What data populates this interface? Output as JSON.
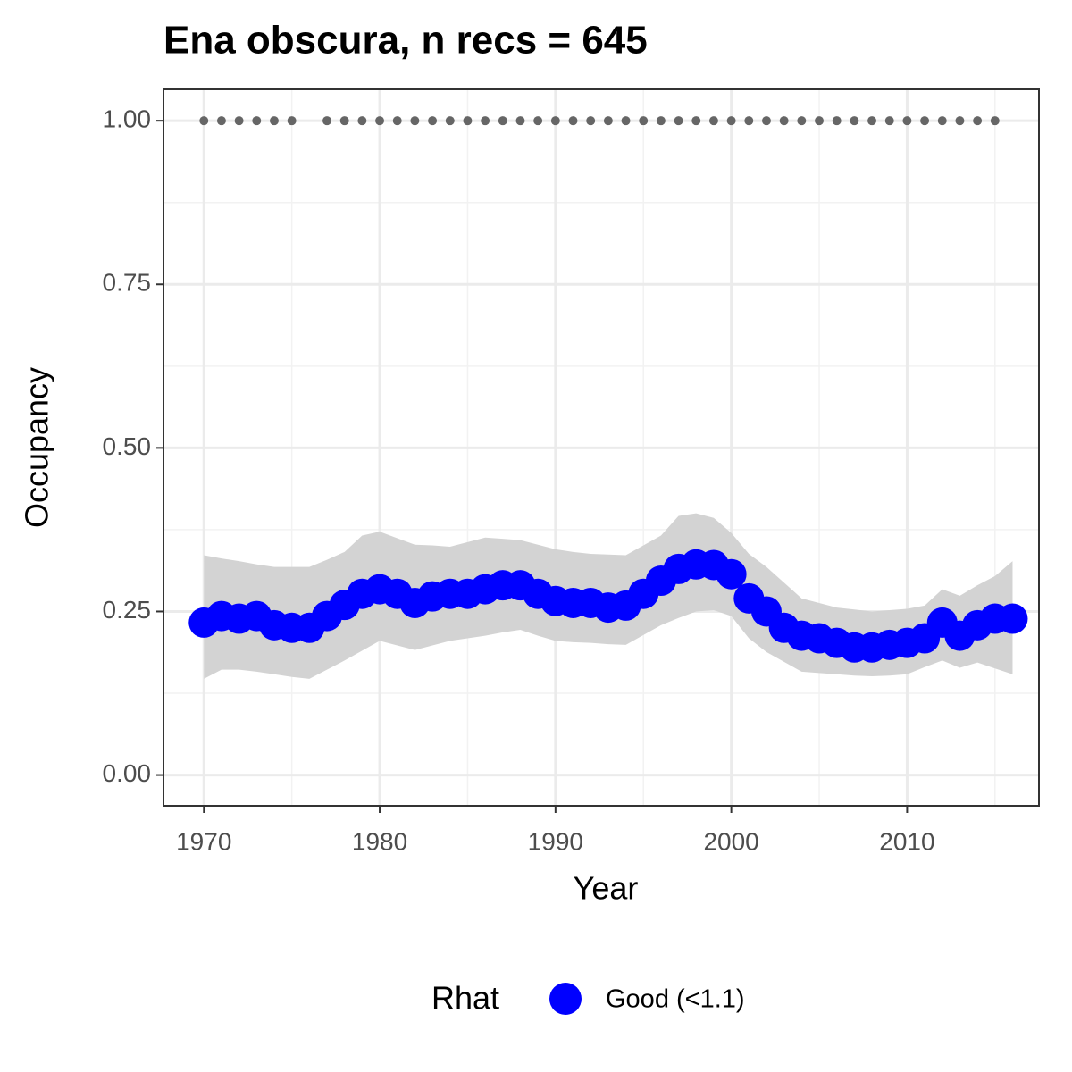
{
  "chart_data": {
    "type": "line",
    "title": "Ena obscura, n recs = 645",
    "x_label": "Year",
    "y_label": "Occupancy",
    "legend_title": "Rhat",
    "x": [
      1970,
      1971,
      1972,
      1973,
      1974,
      1975,
      1976,
      1977,
      1978,
      1979,
      1980,
      1981,
      1982,
      1983,
      1984,
      1985,
      1986,
      1987,
      1988,
      1989,
      1990,
      1991,
      1992,
      1993,
      1994,
      1995,
      1996,
      1997,
      1998,
      1999,
      2000,
      2001,
      2002,
      2003,
      2004,
      2005,
      2006,
      2007,
      2008,
      2009,
      2010,
      2011,
      2012,
      2013,
      2014,
      2015,
      2016
    ],
    "series": [
      {
        "name": "Good (<1.1)",
        "color": "#0000ff",
        "band_color": "#d3d3d3",
        "values": [
          0.233,
          0.243,
          0.239,
          0.243,
          0.229,
          0.225,
          0.225,
          0.243,
          0.26,
          0.277,
          0.284,
          0.277,
          0.263,
          0.273,
          0.277,
          0.277,
          0.284,
          0.29,
          0.29,
          0.277,
          0.266,
          0.263,
          0.263,
          0.256,
          0.259,
          0.277,
          0.297,
          0.315,
          0.322,
          0.321,
          0.307,
          0.27,
          0.25,
          0.225,
          0.213,
          0.209,
          0.202,
          0.195,
          0.195,
          0.199,
          0.202,
          0.209,
          0.233,
          0.213,
          0.229,
          0.239,
          0.239
        ],
        "upper": [
          0.336,
          0.331,
          0.327,
          0.322,
          0.318,
          0.318,
          0.318,
          0.329,
          0.341,
          0.366,
          0.372,
          0.362,
          0.352,
          0.351,
          0.349,
          0.356,
          0.363,
          0.361,
          0.359,
          0.352,
          0.345,
          0.341,
          0.338,
          0.337,
          0.336,
          0.351,
          0.366,
          0.396,
          0.4,
          0.393,
          0.37,
          0.338,
          0.318,
          0.294,
          0.27,
          0.263,
          0.256,
          0.253,
          0.25,
          0.252,
          0.254,
          0.259,
          0.284,
          0.274,
          0.29,
          0.304,
          0.327
        ],
        "lower": [
          0.147,
          0.161,
          0.161,
          0.158,
          0.154,
          0.15,
          0.147,
          0.161,
          0.175,
          0.19,
          0.205,
          0.198,
          0.191,
          0.198,
          0.205,
          0.209,
          0.213,
          0.218,
          0.222,
          0.213,
          0.205,
          0.203,
          0.202,
          0.2,
          0.199,
          0.214,
          0.229,
          0.24,
          0.25,
          0.252,
          0.243,
          0.209,
          0.188,
          0.173,
          0.158,
          0.156,
          0.154,
          0.152,
          0.151,
          0.152,
          0.154,
          0.165,
          0.175,
          0.164,
          0.172,
          0.163,
          0.154
        ]
      }
    ],
    "record_points": {
      "color": "#666666",
      "x": [
        1970,
        1971,
        1972,
        1973,
        1974,
        1975,
        1977,
        1978,
        1979,
        1980,
        1981,
        1982,
        1983,
        1984,
        1985,
        1986,
        1987,
        1988,
        1989,
        1990,
        1991,
        1992,
        1993,
        1994,
        1995,
        1996,
        1997,
        1998,
        1999,
        2000,
        2001,
        2002,
        2003,
        2004,
        2005,
        2006,
        2007,
        2008,
        2009,
        2010,
        2011,
        2012,
        2013,
        2014,
        2015
      ],
      "values": [
        1,
        1,
        1,
        1,
        1,
        1,
        1,
        1,
        1,
        1,
        1,
        1,
        1,
        1,
        1,
        1,
        1,
        1,
        1,
        1,
        1,
        1,
        1,
        1,
        1,
        1,
        1,
        1,
        1,
        1,
        1,
        1,
        1,
        1,
        1,
        1,
        1,
        1,
        1,
        1,
        1,
        1,
        1,
        1,
        1
      ]
    },
    "xlim": [
      1967.7,
      2017.5
    ],
    "ylim": [
      -0.047,
      1.048
    ],
    "xticks": [
      1970,
      1980,
      1990,
      2000,
      2010
    ],
    "yticks": [
      {
        "value": 0,
        "label": "0.00"
      },
      {
        "value": 0.25,
        "label": "0.25"
      },
      {
        "value": 0.5,
        "label": "0.50"
      },
      {
        "value": 0.75,
        "label": "0.75"
      },
      {
        "value": 1,
        "label": "1.00"
      }
    ],
    "xminor": [
      1975,
      1985,
      1995,
      2005,
      2015
    ],
    "yminor": [
      0.125,
      0.375,
      0.625,
      0.875
    ],
    "grid": true,
    "legend": "bottom"
  }
}
